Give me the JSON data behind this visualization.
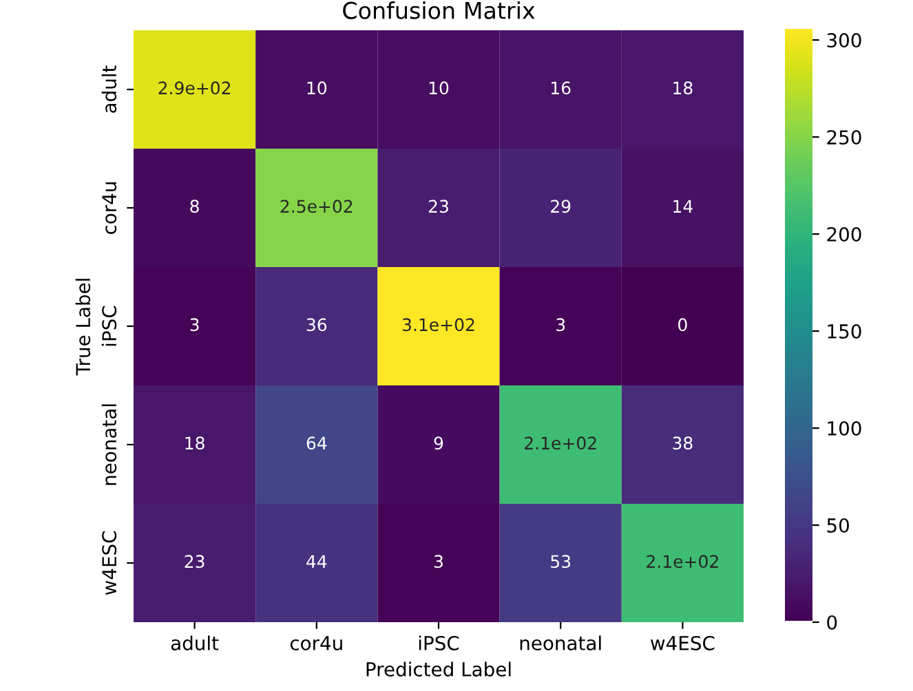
{
  "chart_data": {
    "type": "heatmap",
    "title": "Confusion Matrix",
    "xlabel": "Predicted Label",
    "ylabel": "True Label",
    "categories": [
      "adult",
      "cor4u",
      "iPSC",
      "neonatal",
      "w4ESC"
    ],
    "y_categories": [
      "adult",
      "cor4u",
      "iPSC",
      "neonatal",
      "w4ESC"
    ],
    "cells": [
      [
        290,
        10,
        10,
        16,
        18
      ],
      [
        8,
        250,
        23,
        29,
        14
      ],
      [
        3,
        36,
        305,
        3,
        0
      ],
      [
        18,
        64,
        9,
        210,
        38
      ],
      [
        23,
        44,
        3,
        53,
        210
      ]
    ],
    "cell_labels": [
      [
        "2.9e+02",
        "10",
        "10",
        "16",
        "18"
      ],
      [
        "8",
        "2.5e+02",
        "23",
        "29",
        "14"
      ],
      [
        "3",
        "36",
        "3.1e+02",
        "3",
        "0"
      ],
      [
        "18",
        "64",
        "9",
        "2.1e+02",
        "38"
      ],
      [
        "23",
        "44",
        "3",
        "53",
        "2.1e+02"
      ]
    ],
    "clim": [
      0,
      305
    ],
    "cticks": [
      0,
      50,
      100,
      150,
      200,
      250,
      300
    ]
  }
}
